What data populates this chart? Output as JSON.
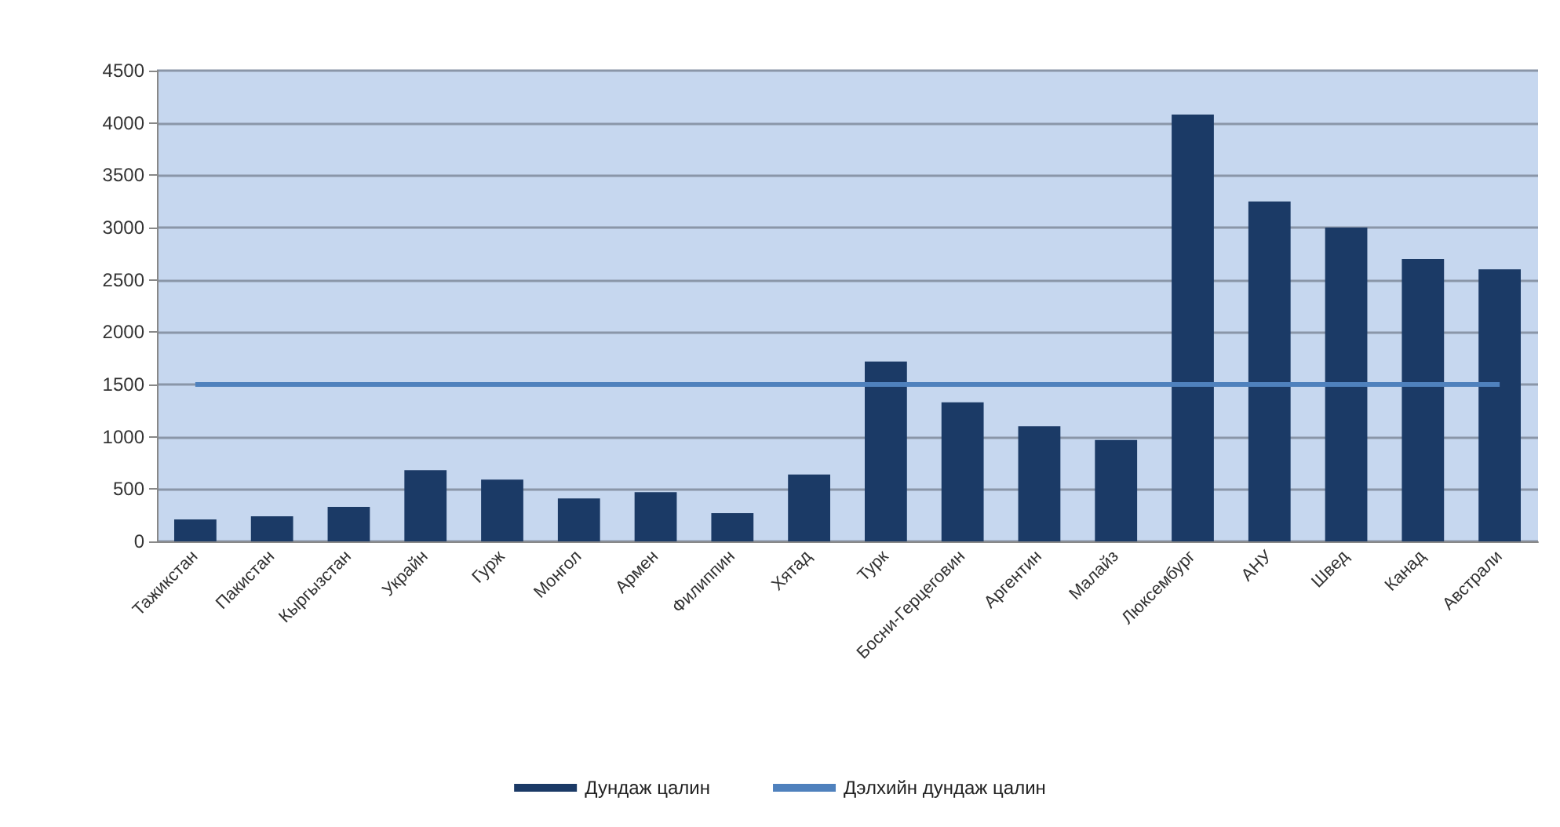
{
  "chart_data": {
    "type": "bar",
    "categories": [
      "Тажикстан",
      "Пакистан",
      "Кыргызстан",
      "Украйн",
      "Гурж",
      "Монгол",
      "Армен",
      "Филиппин",
      "Хятад",
      "Турк",
      "Босни-Герцеговин",
      "Аргентин",
      "Малайз",
      "Люксембург",
      "АНУ",
      "Швед",
      "Канад",
      "Австрали"
    ],
    "series": [
      {
        "name": "Дундаж цалин",
        "color": "#1b3a66",
        "values": [
          210,
          240,
          330,
          680,
          590,
          410,
          470,
          270,
          640,
          1720,
          1330,
          1100,
          970,
          4080,
          3250,
          3000,
          2700,
          2600
        ]
      },
      {
        "name": "Дэлхийн дундаж цалин",
        "type": "line",
        "color": "#4f81bd",
        "values": [
          1500,
          1500,
          1500,
          1500,
          1500,
          1500,
          1500,
          1500,
          1500,
          1500,
          1500,
          1500,
          1500,
          1500,
          1500,
          1500,
          1500,
          1500
        ]
      }
    ],
    "ylim": [
      0,
      4500
    ],
    "yticks": [
      0,
      500,
      1000,
      1500,
      2000,
      2500,
      3000,
      3500,
      4000,
      4500
    ],
    "grid": "y",
    "legend": "bottom",
    "marker": "none"
  }
}
